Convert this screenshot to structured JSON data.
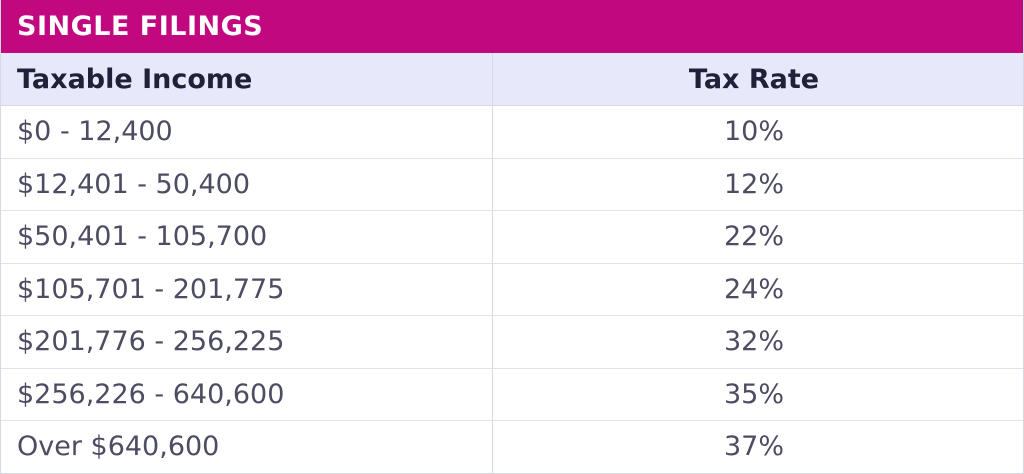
{
  "title": "SINGLE FILINGS",
  "headers": {
    "income": "Taxable Income",
    "rate": "Tax Rate"
  },
  "rows": [
    {
      "income": "$0 - 12,400",
      "rate": "10%"
    },
    {
      "income": "$12,401 - 50,400",
      "rate": "12%"
    },
    {
      "income": "$50,401 - 105,700",
      "rate": "22%"
    },
    {
      "income": "$105,701 - 201,775",
      "rate": "24%"
    },
    {
      "income": "$201,776 - 256,225",
      "rate": "32%"
    },
    {
      "income": "$256,226 - 640,600",
      "rate": "35%"
    },
    {
      "income": "Over $640,600",
      "rate": "37%"
    }
  ],
  "colors": {
    "title_bg": "#c1087f",
    "header_bg": "#e8e8fb"
  }
}
